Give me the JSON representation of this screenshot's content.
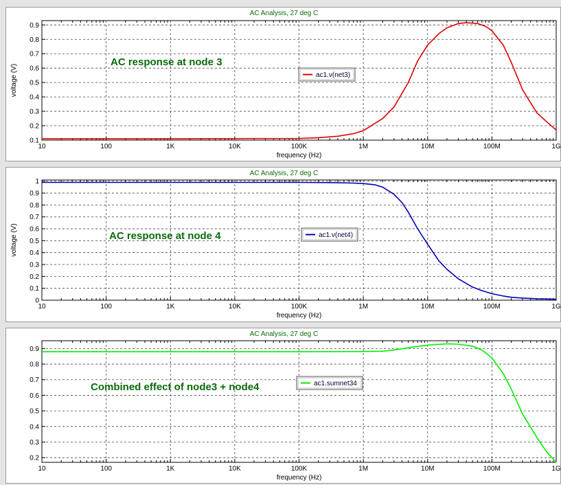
{
  "chart_data": [
    {
      "type": "line",
      "title": "AC Analysis, 27 deg C",
      "xlabel": "frequency (Hz)",
      "ylabel": "voltage (V)",
      "xscale": "log",
      "xlim": [
        10,
        1000000000
      ],
      "ylim": [
        0.1,
        0.93
      ],
      "x_ticks": [
        10,
        100,
        1000,
        10000,
        100000,
        1000000,
        10000000,
        100000000,
        1000000000
      ],
      "x_tick_labels": [
        "10",
        "100",
        "1K",
        "10K",
        "100K",
        "1M",
        "10M",
        "100M",
        "1G"
      ],
      "y_ticks": [
        0.1,
        0.2,
        0.3,
        0.4,
        0.5,
        0.6,
        0.7,
        0.8,
        0.9
      ],
      "y_tick_labels": [
        "0.1",
        "0.2",
        "0.3",
        "0.4",
        "0.5",
        "0.6",
        "0.7",
        "0.8",
        "0.9"
      ],
      "grid": true,
      "legend_position": "center-right",
      "annotation": "AC response at node 3",
      "annotation_color": "#0a6a0a",
      "series": [
        {
          "name": "ac1.v(net3)",
          "color": "#dd0000",
          "x": [
            10,
            1000,
            100000,
            200000,
            400000,
            700000,
            1000000,
            2000000,
            3000000,
            5000000,
            7000000,
            10000000,
            15000000,
            20000000,
            30000000,
            40000000,
            60000000,
            80000000,
            100000000,
            150000000,
            200000000,
            300000000,
            500000000,
            700000000,
            1000000000
          ],
          "y": [
            0.11,
            0.11,
            0.112,
            0.117,
            0.127,
            0.145,
            0.166,
            0.25,
            0.33,
            0.5,
            0.65,
            0.76,
            0.84,
            0.88,
            0.91,
            0.915,
            0.91,
            0.89,
            0.86,
            0.76,
            0.64,
            0.45,
            0.29,
            0.23,
            0.17
          ]
        }
      ]
    },
    {
      "type": "line",
      "title": "AC Analysis, 27 deg C",
      "xlabel": "frequency (Hz)",
      "ylabel": "voltage (V)",
      "xscale": "log",
      "xlim": [
        10,
        1000000000
      ],
      "ylim": [
        0,
        1.01
      ],
      "x_ticks": [
        10,
        100,
        1000,
        10000,
        100000,
        1000000,
        10000000,
        100000000,
        1000000000
      ],
      "x_tick_labels": [
        "10",
        "100",
        "1K",
        "10K",
        "100K",
        "1M",
        "10M",
        "100M",
        "1G"
      ],
      "y_ticks": [
        0,
        0.1,
        0.2,
        0.3,
        0.4,
        0.5,
        0.6,
        0.7,
        0.8,
        0.9,
        1
      ],
      "y_tick_labels": [
        "0",
        "0.1",
        "0.2",
        "0.3",
        "0.4",
        "0.5",
        "0.6",
        "0.7",
        "0.8",
        "0.9",
        "1"
      ],
      "grid": true,
      "legend_position": "center-right",
      "annotation": "AC response at node 4",
      "annotation_color": "#0a6a0a",
      "series": [
        {
          "name": "ac1.v(net4)",
          "color": "#0000bb",
          "x": [
            10,
            1000,
            100000,
            300000,
            700000,
            1000000,
            1500000,
            2000000,
            3000000,
            4000000,
            5000000,
            7000000,
            10000000,
            15000000,
            20000000,
            30000000,
            50000000,
            70000000,
            100000000,
            150000000,
            200000000,
            300000000,
            500000000,
            1000000000
          ],
          "y": [
            0.99,
            0.99,
            0.99,
            0.988,
            0.984,
            0.98,
            0.97,
            0.95,
            0.89,
            0.82,
            0.74,
            0.6,
            0.47,
            0.33,
            0.26,
            0.18,
            0.11,
            0.08,
            0.055,
            0.035,
            0.025,
            0.018,
            0.012,
            0.008
          ]
        }
      ]
    },
    {
      "type": "line",
      "title": "AC Analysis, 27 deg C",
      "xlabel": "frequency (Hz)",
      "ylabel": "",
      "xscale": "log",
      "xlim": [
        10,
        1000000000
      ],
      "ylim": [
        0.17,
        0.95
      ],
      "x_ticks": [
        10,
        100,
        1000,
        10000,
        100000,
        1000000,
        10000000,
        100000000,
        1000000000
      ],
      "x_tick_labels": [
        "10",
        "100",
        "1K",
        "10K",
        "100K",
        "1M",
        "10M",
        "100M",
        "1G"
      ],
      "y_ticks": [
        0.2,
        0.3,
        0.4,
        0.5,
        0.6,
        0.7,
        0.8,
        0.9
      ],
      "y_tick_labels": [
        "0.2",
        "0.3",
        "0.4",
        "0.5",
        "0.6",
        "0.7",
        "0.8",
        "0.9"
      ],
      "grid": true,
      "legend_position": "center-right",
      "annotation": "Combined effect of node3 + node4",
      "annotation_color": "#0a6a0a",
      "series": [
        {
          "name": "ac1.sumnet34",
          "color": "#00ee00",
          "x": [
            10,
            1000,
            100000,
            1000000,
            2000000,
            3000000,
            5000000,
            10000000,
            20000000,
            30000000,
            50000000,
            70000000,
            100000000,
            150000000,
            200000000,
            300000000,
            500000000,
            700000000,
            1000000000
          ],
          "y": [
            0.88,
            0.88,
            0.88,
            0.881,
            0.883,
            0.89,
            0.905,
            0.922,
            0.93,
            0.928,
            0.915,
            0.89,
            0.84,
            0.74,
            0.64,
            0.48,
            0.33,
            0.24,
            0.17
          ]
        }
      ]
    }
  ]
}
